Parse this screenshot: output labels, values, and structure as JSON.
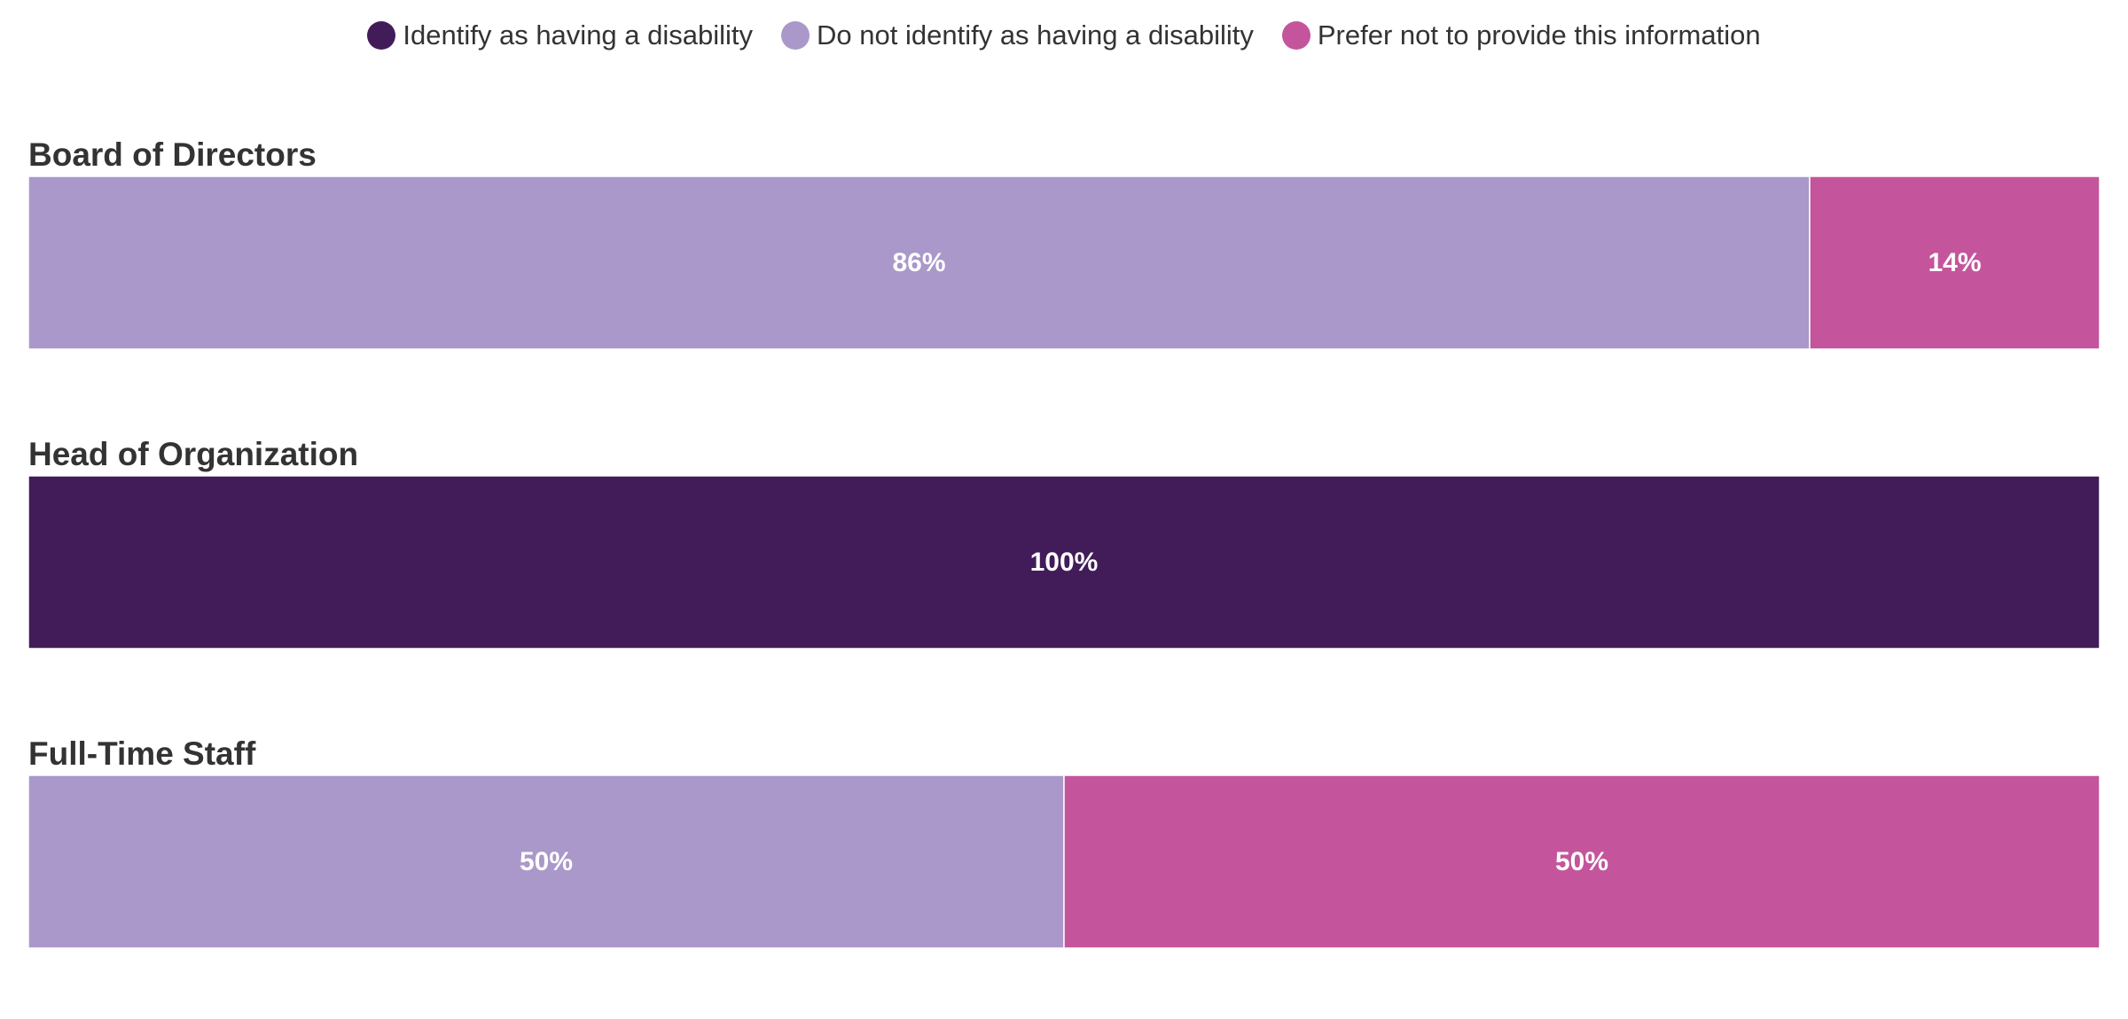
{
  "chart_data": {
    "type": "bar",
    "orientation": "horizontal",
    "stacked": true,
    "percent": true,
    "legend_position": "top-center",
    "grid": false,
    "categories": [
      "Board of Directors",
      "Head of Organization",
      "Full-Time Staff"
    ],
    "series": [
      {
        "name": "Identify as having a disability",
        "color": "#421c58",
        "values": [
          0,
          100,
          0
        ]
      },
      {
        "name": "Do not identify as having a disability",
        "color": "#a998c9",
        "values": [
          86,
          0,
          50
        ]
      },
      {
        "name": "Prefer not to provide this information",
        "color": "#c4559c",
        "values": [
          14,
          0,
          50
        ]
      }
    ]
  }
}
